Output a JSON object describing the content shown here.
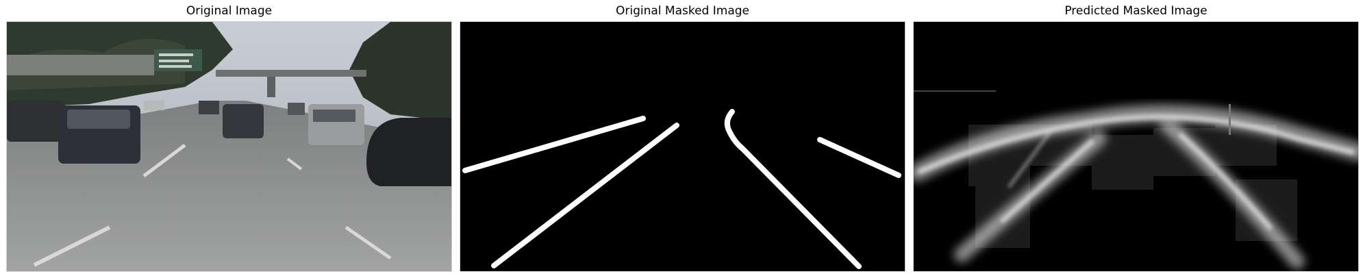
{
  "figure": {
    "panels": [
      {
        "title": "Original Image"
      },
      {
        "title": "Original Masked Image"
      },
      {
        "title": "Predicted Masked Image"
      }
    ]
  }
}
